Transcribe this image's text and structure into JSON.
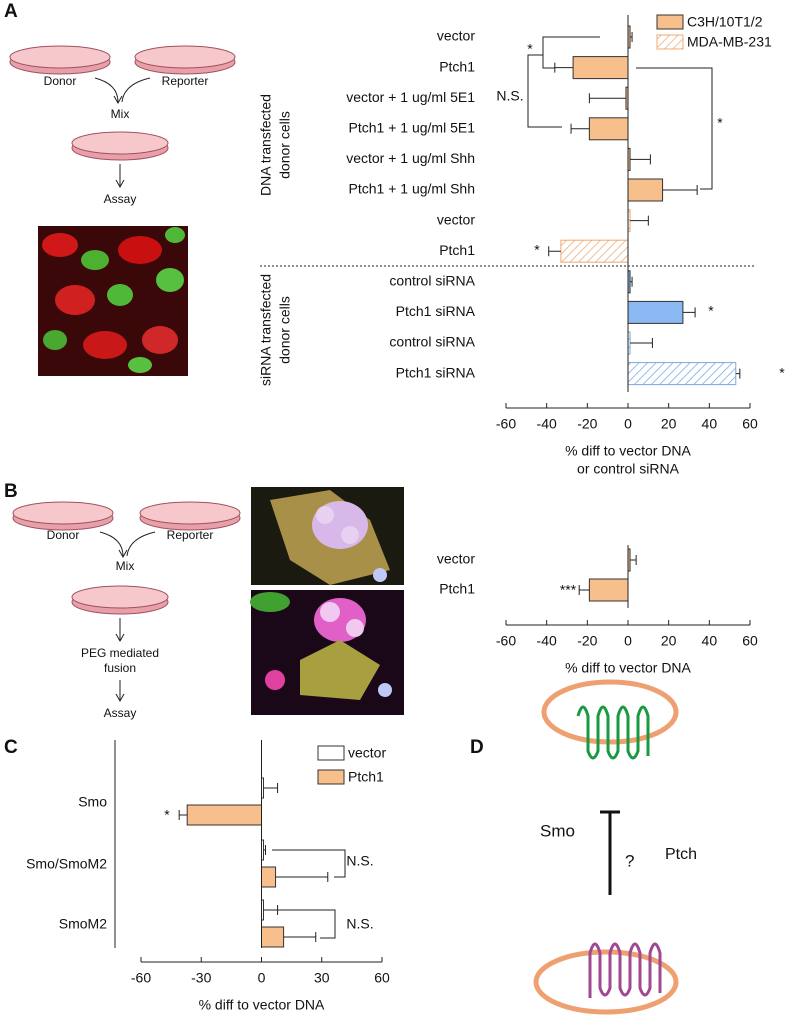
{
  "panel_labels": [
    "A",
    "B",
    "C",
    "D"
  ],
  "diagram_a": {
    "donor": "Donor",
    "reporter": "Reporter",
    "mix": "Mix",
    "assay": "Assay"
  },
  "diagram_b": {
    "donor": "Donor",
    "reporter": "Reporter",
    "mix": "Mix",
    "fusion": [
      "PEG mediated",
      "fusion"
    ],
    "assay": "Assay"
  },
  "diagram_d": {
    "smo": "Smo",
    "question": "?",
    "ptch": "Ptch"
  },
  "chart_data": [
    {
      "type": "bar",
      "orientation": "horizontal",
      "categories": [
        "vector",
        "Ptch1",
        "vector + 1 ug/ml 5E1",
        "Ptch1 + 1 ug/ml 5E1",
        "vector + 1 ug/ml Shh",
        "Ptch1 + 1 ug/ml Shh",
        "vector",
        "Ptch1",
        "control siRNA",
        "Ptch1 siRNA",
        "control siRNA",
        "Ptch1 siRNA"
      ],
      "series": [
        {
          "name": "C3H/10T1/2",
          "color": "#f7bf8c",
          "hatch": false,
          "values": [
            1,
            -27,
            -1,
            -19,
            1,
            17,
            null,
            null,
            null,
            null,
            null,
            null
          ],
          "errors": [
            1,
            9,
            18,
            9,
            10,
            17,
            null,
            null,
            null,
            null,
            null,
            null
          ]
        },
        {
          "name": "MDA-MB-231",
          "color": "#f0a870",
          "hatch": true,
          "values": [
            null,
            null,
            null,
            null,
            null,
            null,
            1,
            -33,
            null,
            null,
            null,
            null
          ],
          "errors": [
            null,
            null,
            null,
            null,
            null,
            null,
            9,
            6,
            null,
            null,
            null,
            null
          ]
        },
        {
          "color": "#8ab8f2",
          "hatch": false,
          "values": [
            null,
            null,
            null,
            null,
            null,
            null,
            null,
            null,
            1,
            27,
            null,
            null
          ],
          "errors": [
            null,
            null,
            null,
            null,
            null,
            null,
            null,
            null,
            1,
            6,
            null,
            null
          ]
        },
        {
          "color": "#7aa8e0",
          "hatch": true,
          "values": [
            null,
            null,
            null,
            null,
            null,
            null,
            null,
            null,
            null,
            null,
            1,
            53
          ],
          "errors": [
            null,
            null,
            null,
            null,
            null,
            null,
            null,
            null,
            null,
            null,
            11,
            2
          ]
        }
      ],
      "group_labels": [
        [
          "DNA transfected",
          "donor cells"
        ],
        [
          "siRNA transfected",
          "donor cells"
        ]
      ],
      "xlabel": [
        "% diff to vector DNA",
        "or control siRNA"
      ],
      "xlim": [
        -60,
        60
      ],
      "xticks": [
        -60,
        -40,
        -20,
        0,
        20,
        40,
        60
      ],
      "annotations": [
        "*",
        "N.S.",
        "*",
        "*",
        "*",
        "*"
      ]
    },
    {
      "type": "bar",
      "orientation": "horizontal",
      "categories": [
        "vector",
        "Ptch1"
      ],
      "series": [
        {
          "color": "#f7bf8c",
          "hatch": false,
          "values": [
            1,
            -19
          ],
          "errors": [
            3,
            5
          ]
        }
      ],
      "xlabel": [
        "% diff to vector DNA"
      ],
      "xlim": [
        -60,
        60
      ],
      "xticks": [
        -60,
        -40,
        -20,
        0,
        20,
        40,
        60
      ],
      "annotations": [
        "***"
      ]
    },
    {
      "type": "bar",
      "orientation": "horizontal",
      "categories": [
        "Smo",
        "Smo/SmoM2",
        "SmoM2"
      ],
      "series": [
        {
          "name": "vector",
          "color": "#ffffff",
          "hatch": false,
          "values": [
            1,
            1,
            1
          ],
          "errors": [
            7,
            1,
            7
          ]
        },
        {
          "name": "Ptch1",
          "color": "#f7bf8c",
          "hatch": false,
          "values": [
            -37,
            7,
            11
          ],
          "errors": [
            4,
            26,
            16
          ]
        }
      ],
      "xlabel": [
        "% diff to vector DNA"
      ],
      "xlim": [
        -60,
        60
      ],
      "xticks": [
        -60,
        -30,
        0,
        30,
        60
      ],
      "annotations": [
        "*",
        "N.S.",
        "N.S."
      ]
    }
  ]
}
